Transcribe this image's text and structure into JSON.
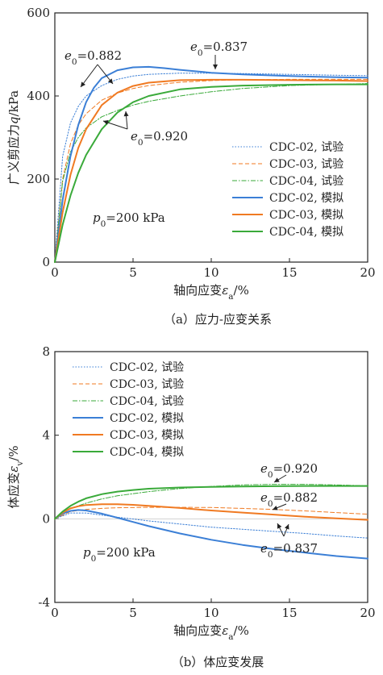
{
  "figure": {
    "caption_a": "（a）应力-应变关系",
    "caption_b": "（b）体应变发展"
  },
  "colors": {
    "blue": "#3b7fd6",
    "orange": "#f07a22",
    "green": "#3aaa3a",
    "axis": "#222222"
  },
  "chart_data": [
    {
      "id": "a",
      "type": "line",
      "xlabel": "轴向应变εa/%",
      "ylabel": "广义剪应力q/kPa",
      "xlim": [
        0,
        20
      ],
      "ylim": [
        0,
        600
      ],
      "xticks": [
        0,
        5,
        10,
        15,
        20
      ],
      "yticks": [
        0,
        200,
        400,
        600
      ],
      "grid": false,
      "legend_position": "right",
      "condition_label": "p0=200 kPa",
      "series": [
        {
          "name": "CDC-02, 试验",
          "color": "#3b7fd6",
          "dash": "1.5,2",
          "width": 1,
          "x": [
            0,
            0.5,
            1,
            1.5,
            2,
            3,
            4,
            5,
            6,
            8,
            10,
            12,
            15,
            18,
            20
          ],
          "y": [
            0,
            255,
            335,
            375,
            400,
            425,
            440,
            448,
            452,
            455,
            455,
            454,
            452,
            450,
            449
          ]
        },
        {
          "name": "CDC-03, 试验",
          "color": "#f07a22",
          "dash": "5,3",
          "width": 1,
          "x": [
            0,
            0.5,
            1,
            1.5,
            2,
            3,
            4,
            5,
            6,
            8,
            10,
            12,
            15,
            18,
            20
          ],
          "y": [
            0,
            200,
            285,
            330,
            357,
            390,
            407,
            418,
            425,
            433,
            437,
            439,
            440,
            440,
            440
          ]
        },
        {
          "name": "CDC-04, 试验",
          "color": "#3aaa3a",
          "dash": "6,2,1.5,2",
          "width": 1,
          "x": [
            0,
            0.5,
            1,
            1.5,
            2,
            3,
            4,
            5,
            6,
            8,
            10,
            12,
            15,
            18,
            20
          ],
          "y": [
            0,
            195,
            265,
            300,
            323,
            350,
            365,
            378,
            387,
            400,
            410,
            418,
            425,
            428,
            430
          ]
        },
        {
          "name": "CDC-02, 模拟",
          "color": "#3b7fd6",
          "dash": "",
          "width": 2,
          "x": [
            0,
            0.5,
            1,
            1.5,
            2,
            2.5,
            3,
            4,
            5,
            6,
            7,
            8,
            10,
            12,
            15,
            18,
            20
          ],
          "y": [
            0,
            150,
            255,
            330,
            385,
            420,
            443,
            462,
            469,
            470,
            467,
            463,
            456,
            452,
            448,
            445,
            444
          ]
        },
        {
          "name": "CDC-03, 模拟",
          "color": "#f07a22",
          "dash": "",
          "width": 2,
          "x": [
            0,
            0.5,
            1,
            1.5,
            2,
            3,
            4,
            5,
            6,
            8,
            10,
            12,
            15,
            18,
            20
          ],
          "y": [
            0,
            120,
            210,
            275,
            320,
            378,
            408,
            424,
            432,
            438,
            439,
            439,
            438,
            437,
            436
          ]
        },
        {
          "name": "CDC-04, 模拟",
          "color": "#3aaa3a",
          "dash": "",
          "width": 2,
          "x": [
            0,
            0.5,
            1,
            1.5,
            2,
            3,
            4,
            5,
            6,
            8,
            10,
            12,
            15,
            18,
            20
          ],
          "y": [
            0,
            90,
            160,
            215,
            258,
            320,
            360,
            385,
            400,
            416,
            422,
            425,
            427,
            428,
            428
          ]
        }
      ],
      "annotations": [
        {
          "label": "e0=0.882"
        },
        {
          "label": "e0=0.837"
        },
        {
          "label": "e0=0.920"
        }
      ]
    },
    {
      "id": "b",
      "type": "line",
      "xlabel": "轴向应变εa/%",
      "ylabel": "体应变εv/%",
      "xlim": [
        0,
        20
      ],
      "ylim": [
        -4,
        8
      ],
      "xticks": [
        0,
        5,
        10,
        15,
        20
      ],
      "yticks": [
        -4,
        0,
        4,
        8
      ],
      "grid": false,
      "legend_position": "top-left",
      "condition_label": "p0=200 kPa",
      "series": [
        {
          "name": "CDC-02, 试验",
          "color": "#3b7fd6",
          "dash": "1.5,2",
          "width": 1,
          "x": [
            0,
            1,
            2,
            3,
            4,
            6,
            8,
            10,
            12,
            14,
            16,
            18,
            20
          ],
          "y": [
            0,
            0.28,
            0.28,
            0.18,
            0.08,
            -0.1,
            -0.25,
            -0.4,
            -0.5,
            -0.6,
            -0.7,
            -0.82,
            -0.92
          ]
        },
        {
          "name": "CDC-03, 试验",
          "color": "#f07a22",
          "dash": "5,3",
          "width": 1,
          "x": [
            0,
            1,
            2,
            3,
            4,
            6,
            8,
            10,
            12,
            14,
            16,
            18,
            20
          ],
          "y": [
            0,
            0.35,
            0.45,
            0.5,
            0.53,
            0.55,
            0.55,
            0.54,
            0.5,
            0.45,
            0.38,
            0.3,
            0.22
          ]
        },
        {
          "name": "CDC-04, 试验",
          "color": "#3aaa3a",
          "dash": "6,2,1.5,2",
          "width": 1,
          "x": [
            0,
            1,
            2,
            3,
            4,
            6,
            8,
            10,
            12,
            14,
            16,
            18,
            20
          ],
          "y": [
            0,
            0.5,
            0.75,
            0.95,
            1.1,
            1.3,
            1.45,
            1.55,
            1.62,
            1.65,
            1.65,
            1.62,
            1.58
          ]
        },
        {
          "name": "CDC-02, 模拟",
          "color": "#3b7fd6",
          "dash": "",
          "width": 2,
          "x": [
            0,
            0.5,
            1,
            1.5,
            2,
            3,
            4,
            5,
            6,
            8,
            10,
            12,
            14,
            16,
            18,
            20
          ],
          "y": [
            0,
            0.25,
            0.38,
            0.42,
            0.4,
            0.25,
            0.05,
            -0.15,
            -0.35,
            -0.7,
            -1.0,
            -1.25,
            -1.45,
            -1.62,
            -1.78,
            -1.9
          ]
        },
        {
          "name": "CDC-03, 模拟",
          "color": "#f07a22",
          "dash": "",
          "width": 2,
          "x": [
            0,
            0.5,
            1,
            1.5,
            2,
            3,
            4,
            5,
            6,
            8,
            10,
            12,
            14,
            16,
            18,
            20
          ],
          "y": [
            0,
            0.3,
            0.5,
            0.6,
            0.66,
            0.7,
            0.7,
            0.67,
            0.62,
            0.52,
            0.4,
            0.3,
            0.2,
            0.1,
            0.02,
            -0.05
          ]
        },
        {
          "name": "CDC-04, 模拟",
          "color": "#3aaa3a",
          "dash": "",
          "width": 2,
          "x": [
            0,
            0.5,
            1,
            1.5,
            2,
            3,
            4,
            5,
            6,
            8,
            10,
            12,
            14,
            16,
            18,
            20
          ],
          "y": [
            0,
            0.35,
            0.62,
            0.82,
            0.98,
            1.18,
            1.3,
            1.38,
            1.44,
            1.5,
            1.53,
            1.55,
            1.56,
            1.57,
            1.57,
            1.57
          ]
        }
      ],
      "annotations": [
        {
          "label": "e0=0.920"
        },
        {
          "label": "e0=0.882"
        },
        {
          "label": "e0=0.837"
        }
      ]
    }
  ]
}
